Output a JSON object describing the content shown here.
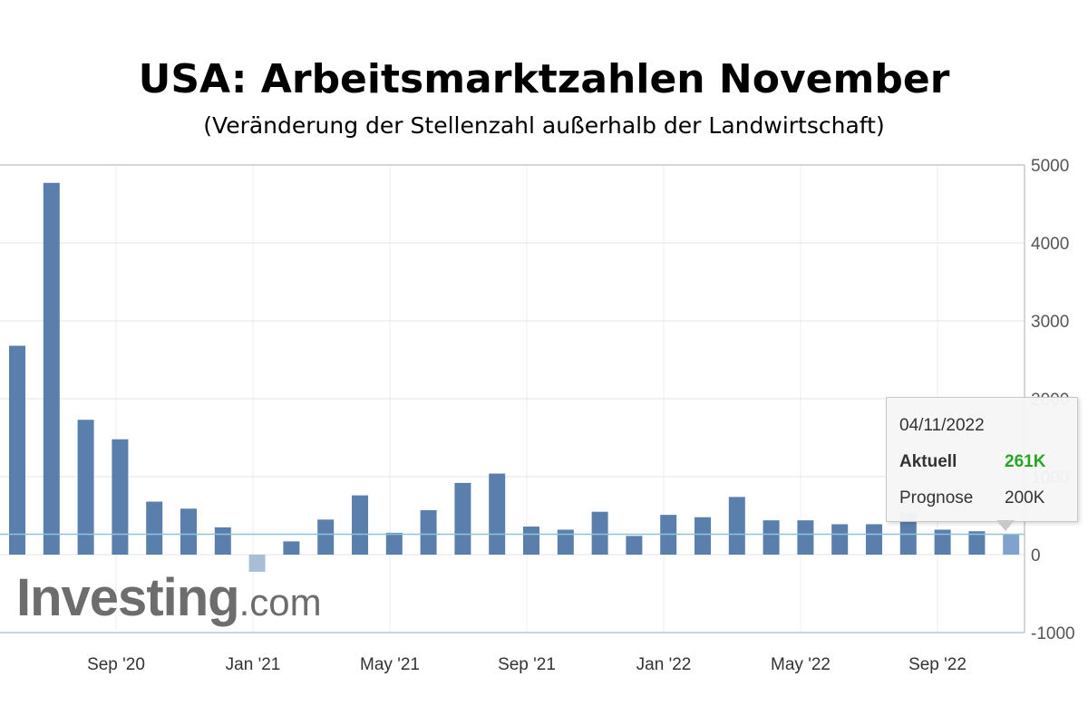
{
  "title": "USA: Arbeitsmarktzahlen November",
  "subtitle": "(Veränderung der Stellenzahl außerhalb der Landwirtschaft)",
  "chart_data": {
    "type": "bar",
    "title": "USA: Arbeitsmarktzahlen November",
    "subtitle": "(Veränderung der Stellenzahl außerhalb der Landwirtschaft)",
    "series": [
      {
        "values": [
          2680,
          4770,
          1730,
          1480,
          680,
          590,
          350,
          -220,
          170,
          450,
          760,
          280,
          570,
          920,
          1040,
          360,
          320,
          550,
          240,
          510,
          480,
          740,
          440,
          440,
          390,
          390,
          540,
          320,
          300,
          261
        ]
      }
    ],
    "yticks": [
      5000,
      4000,
      3000,
      2000,
      1000,
      0,
      -1000
    ],
    "ylim": [
      -1000,
      5000
    ],
    "xtick_labels": [
      "Sep '20",
      "Jan '21",
      "May '21",
      "Sep '21",
      "Jan '22",
      "May '22",
      "Sep '22"
    ],
    "grid": true,
    "colors": {
      "bar": "#5b7fac",
      "negative_bar": "#a9bdd6",
      "highlight_bar": "#7fa3cc",
      "grid": "#e6e6e6",
      "reference_line": "#8fc3d9"
    }
  },
  "tooltip": {
    "date": "04/11/2022",
    "actual_label": "Aktuell",
    "actual_value": "261K",
    "forecast_label": "Prognose",
    "forecast_value": "200K"
  },
  "watermark": {
    "main": "Investing",
    "suffix": ".com"
  }
}
